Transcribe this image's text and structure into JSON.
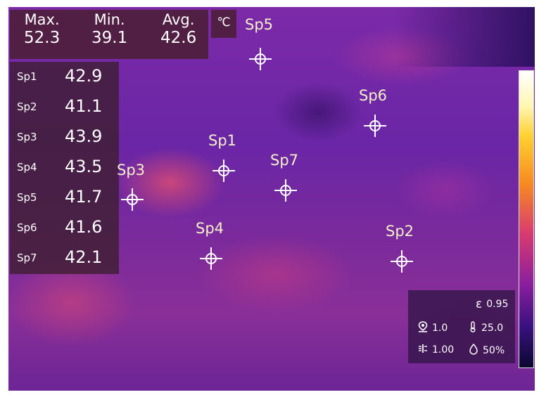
{
  "stats": {
    "max_label": "Max.",
    "max_value": "52.3",
    "min_label": "Min.",
    "min_value": "39.1",
    "avg_label": "Avg.",
    "avg_value": "42.6",
    "unit": "℃"
  },
  "spots": [
    {
      "name": "Sp1",
      "value": "42.9"
    },
    {
      "name": "Sp2",
      "value": "41.1"
    },
    {
      "name": "Sp3",
      "value": "43.9"
    },
    {
      "name": "Sp4",
      "value": "43.5"
    },
    {
      "name": "Sp5",
      "value": "41.7"
    },
    {
      "name": "Sp6",
      "value": "41.6"
    },
    {
      "name": "Sp7",
      "value": "42.1"
    }
  ],
  "params": {
    "emissivity_symbol": "ε",
    "emissivity": "0.95",
    "distance": "1.0",
    "reflected_temp": "25.0",
    "transmittance": "1.00",
    "humidity": "50%"
  },
  "icons": {
    "distance": "location-pin-icon",
    "reflected_temp": "thermometer-icon",
    "transmittance": "transmission-icon",
    "humidity": "droplet-icon"
  },
  "colors": {
    "palette_top": "#ffffff",
    "palette_mid": "#d83a70",
    "palette_bottom": "#0a0830",
    "marker": "#ffffff",
    "label": "#f3f0c8"
  }
}
